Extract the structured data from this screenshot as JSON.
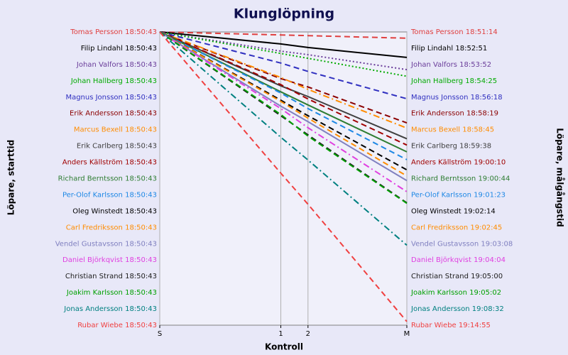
{
  "chart_data": {
    "type": "line",
    "title": "Klunglöpning",
    "x_label": "Kontroll",
    "y_label": "Löpare, starttid",
    "y2_label": "Löpare, målgångstid",
    "x": [
      0,
      0.49,
      0.6,
      1
    ],
    "xlim": [
      0,
      1
    ],
    "xticks": [
      {
        "value": 0,
        "label": "S"
      },
      {
        "value": 0.49,
        "label": "1"
      },
      {
        "value": 0.6,
        "label": "2"
      },
      {
        "value": 1,
        "label": "M"
      }
    ],
    "ylim": [
      0,
      24.5
    ],
    "grid": true,
    "series": [
      {
        "name": "Tomas Persson",
        "start": "18:50:43",
        "finish": "18:51:14",
        "color": "#e04040",
        "dash": "dashed",
        "values": [
          0,
          0.25,
          0.31,
          0.52
        ]
      },
      {
        "name": "Filip Lindahl",
        "start": "18:50:43",
        "finish": "18:52:51",
        "color": "#000000",
        "dash": "solid",
        "values": [
          0,
          1.0,
          1.3,
          2.13
        ]
      },
      {
        "name": "Johan Valfors",
        "start": "18:50:43",
        "finish": "18:53:52",
        "color": "#6a3d9a",
        "dash": "dotted",
        "values": [
          0,
          1.6,
          1.9,
          3.15
        ]
      },
      {
        "name": "Johan Hallberg",
        "start": "18:50:43",
        "finish": "18:54:25",
        "color": "#00aa00",
        "dash": "dotted",
        "values": [
          0,
          1.8,
          2.2,
          3.7
        ]
      },
      {
        "name": "Magnus Jonsson",
        "start": "18:50:43",
        "finish": "18:56:18",
        "color": "#3030c0",
        "dash": "dashed",
        "values": [
          0,
          2.6,
          3.3,
          5.58
        ]
      },
      {
        "name": "Erik Andersson",
        "start": "18:50:43",
        "finish": "18:58:19",
        "color": "#8b0000",
        "dash": "dashed",
        "values": [
          0,
          3.9,
          4.6,
          7.6
        ]
      },
      {
        "name": "Marcus Bexell",
        "start": "18:50:43",
        "finish": "18:58:45",
        "color": "#ff8c00",
        "dash": "dashdot",
        "values": [
          0,
          3.8,
          4.8,
          8.03
        ]
      },
      {
        "name": "Erik Carlberg",
        "start": "18:50:43",
        "finish": "18:59:38",
        "color": "#404040",
        "dash": "solid",
        "values": [
          0,
          4.5,
          5.4,
          8.92
        ]
      },
      {
        "name": "Anders Källström",
        "start": "18:50:43",
        "finish": "19:00:10",
        "color": "#a00000",
        "dash": "dashed",
        "values": [
          0,
          4.4,
          5.6,
          9.45
        ]
      },
      {
        "name": "Richard Berntsson",
        "start": "18:50:43",
        "finish": "19:00:44",
        "color": "#2e7d32",
        "dash": "solid",
        "values": [
          0,
          5.0,
          6.1,
          10.02
        ]
      },
      {
        "name": "Per-Olof Karlsson",
        "start": "18:50:43",
        "finish": "19:01:23",
        "color": "#1e88e5",
        "dash": "dashed",
        "values": [
          0,
          5.1,
          6.4,
          10.67
        ]
      },
      {
        "name": "Oleg Winstedt",
        "start": "18:50:43",
        "finish": "19:02:14",
        "color": "#000000",
        "dash": "dashed",
        "values": [
          0,
          5.7,
          7.0,
          11.52
        ]
      },
      {
        "name": "Carl Fredriksson",
        "start": "18:50:43",
        "finish": "19:02:45",
        "color": "#ff8c00",
        "dash": "dashed",
        "values": [
          0,
          5.8,
          7.2,
          12.03
        ]
      },
      {
        "name": "Vendel Gustavsson",
        "start": "18:50:43",
        "finish": "19:03:08",
        "color": "#8080c0",
        "dash": "solid",
        "values": [
          0,
          6.2,
          7.5,
          12.42
        ]
      },
      {
        "name": "Daniel Björkqvist",
        "start": "18:50:43",
        "finish": "19:04:04",
        "color": "#e040e0",
        "dash": "dashdot",
        "values": [
          0,
          6.4,
          8.0,
          13.35
        ]
      },
      {
        "name": "Christian Strand",
        "start": "18:50:43",
        "finish": "19:05:00",
        "color": "#202020",
        "dash": "dashed",
        "values": [
          0,
          7.0,
          8.6,
          14.28
        ]
      },
      {
        "name": "Joakim Karlsson",
        "start": "18:50:43",
        "finish": "19:05:02",
        "color": "#00a000",
        "dash": "dashed",
        "values": [
          0,
          6.9,
          8.7,
          14.32
        ]
      },
      {
        "name": "Jonas Andersson",
        "start": "18:50:43",
        "finish": "19:08:32",
        "color": "#008080",
        "dash": "dashdot",
        "values": [
          0,
          8.8,
          10.7,
          17.82
        ]
      },
      {
        "name": "Rubar Wiebe",
        "start": "18:50:43",
        "finish": "19:14:55",
        "color": "#f04040",
        "dash": "dashed",
        "values": [
          0,
          11.8,
          14.4,
          24.2
        ]
      }
    ]
  }
}
